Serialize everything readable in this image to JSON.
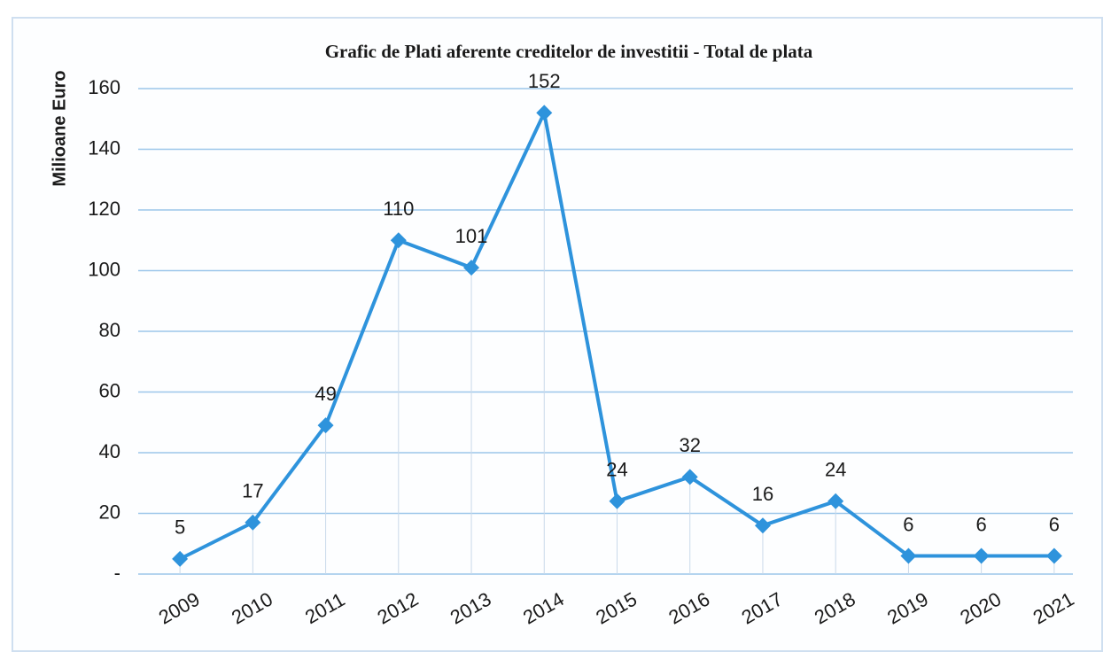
{
  "chart_data": {
    "type": "line",
    "title": "Grafic de Plati  aferente creditelor de investitii - Total de plata",
    "y_axis_label": "Milioane Euro",
    "categories": [
      "2009",
      "2010",
      "2011",
      "2012",
      "2013",
      "2014",
      "2015",
      "2016",
      "2017",
      "2018",
      "2019",
      "2020",
      "2021"
    ],
    "values": [
      5,
      17,
      49,
      110,
      101,
      152,
      24,
      32,
      16,
      24,
      6,
      6,
      6
    ],
    "color": "#2e93dc",
    "ylim": [
      0,
      160
    ],
    "yticks": [
      {
        "value": 0,
        "label": "-"
      },
      20,
      40,
      60,
      80,
      100,
      120,
      140,
      160
    ],
    "grid": true
  }
}
